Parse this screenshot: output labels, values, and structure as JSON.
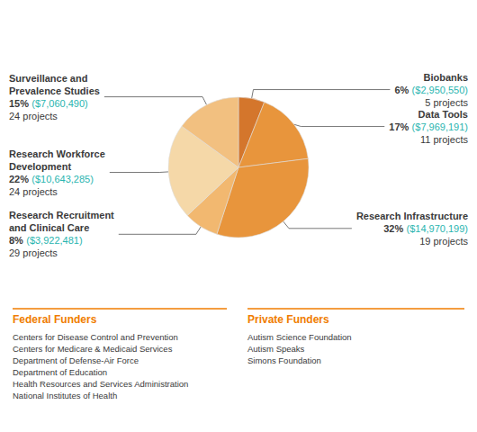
{
  "chart_data": {
    "type": "pie",
    "categories": [
      "Biobanks",
      "Data Tools",
      "Research Infrastructure",
      "Research Recruitment\nand Clinical Care",
      "Research Workforce\nDevelopment",
      "Surveillance and\nPrevalence Studies"
    ],
    "values": [
      6,
      17,
      32,
      8,
      22,
      15
    ],
    "value_labels": [
      "6%",
      "17%",
      "32%",
      "8%",
      "22%",
      "15%"
    ],
    "colors": [
      "#d4762c",
      "#e8953c",
      "#e8953c",
      "#f2b870",
      "#f5d8a8",
      "#f2c080"
    ],
    "amount_labels": [
      "($2,950,550)",
      "($7,969,191)",
      "($14,970,199)",
      "($3,922,481)",
      "($10,643,285)",
      "($7,060,490)"
    ],
    "amount_color": "#2ab5b0",
    "project_labels": [
      "5 projects",
      "11 projects",
      "19 projects",
      "29 projects",
      "24 projects",
      "24 projects"
    ],
    "text_color": "#3a3a3a",
    "funders_color": "#f07d00",
    "funders": [
      {
        "title": "Federal Funders",
        "names": [
          "Centers for Disease Control and Prevention",
          "Centers for Medicare & Medicaid Services",
          "Department of Defense-Air Force",
          "Department of Education",
          "Health Resources and Services Administration",
          "National Institutes of Health"
        ]
      },
      {
        "title": "Private Funders",
        "names": [
          "Autism Science Foundation",
          "Autism Speaks",
          "Simons Foundation"
        ]
      }
    ]
  }
}
